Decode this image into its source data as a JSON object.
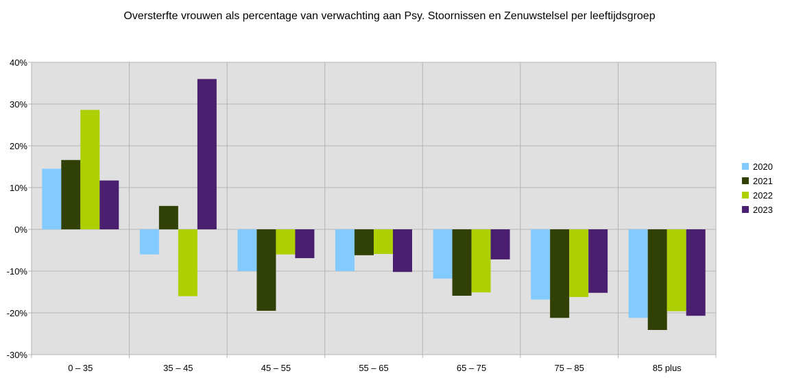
{
  "chart_data": {
    "type": "bar",
    "title": "Oversterfte vrouwen als percentage van verwachting aan Psy. Stoornissen en Zenuwstelsel per leeftijdsgroep",
    "xlabel": "",
    "ylabel": "",
    "categories": [
      "0 – 35",
      "35 – 45",
      "45 – 55",
      "55 – 65",
      "65 – 75",
      "75 – 85",
      "85 plus"
    ],
    "ylim": [
      -30,
      40
    ],
    "yticks": [
      40,
      30,
      20,
      10,
      0,
      -10,
      -20,
      -30
    ],
    "ytick_labels": [
      "40%",
      "30%",
      "20%",
      "10%",
      "0%",
      "-10%",
      "-20%",
      "-30%"
    ],
    "grid": true,
    "legend_position": "right",
    "series": [
      {
        "name": "2020",
        "color": "#83caff",
        "values": [
          14.5,
          -6.0,
          -10.0,
          -10.0,
          -11.8,
          -16.8,
          -21.2
        ]
      },
      {
        "name": "2021",
        "color": "#314004",
        "values": [
          16.6,
          5.6,
          -19.5,
          -6.2,
          -15.9,
          -21.2,
          -24.1
        ]
      },
      {
        "name": "2022",
        "color": "#aecf00",
        "values": [
          28.6,
          -16.0,
          -6.0,
          -5.9,
          -15.1,
          -16.2,
          -19.6
        ]
      },
      {
        "name": "2023",
        "color": "#4b1f6f",
        "values": [
          11.7,
          36.0,
          -6.9,
          -10.2,
          -7.2,
          -15.2,
          -20.7
        ]
      }
    ],
    "plot_background": "#e0e0e0",
    "grid_color": "#b3b3b3"
  }
}
